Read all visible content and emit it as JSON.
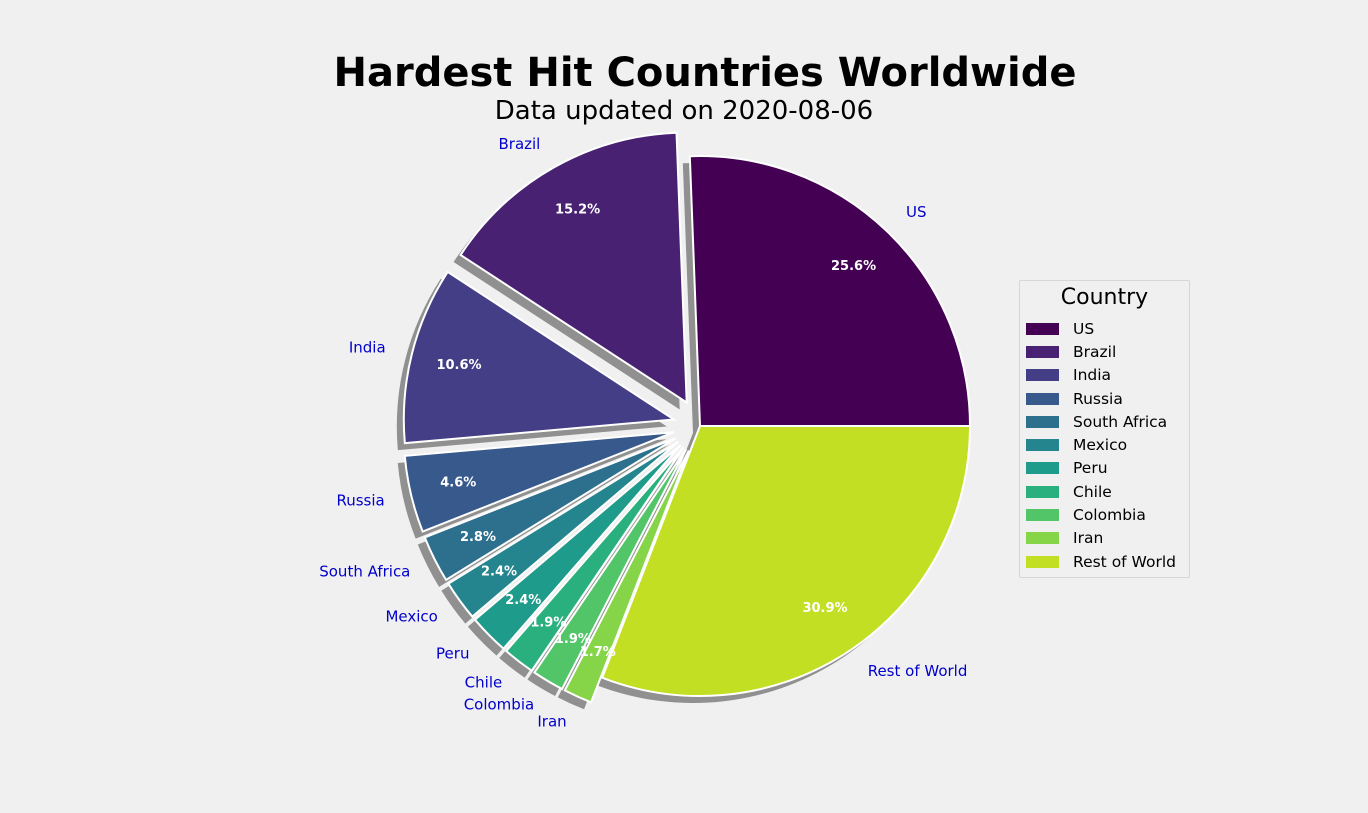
{
  "colors": {
    "background": "#f0f0f0",
    "label_color": "#0000cc",
    "pct_color": "#ffffff",
    "shadow": "#7f7f7f"
  },
  "chart_data": {
    "type": "pie",
    "title": "Hardest Hit Countries Worldwide",
    "subtitle": "Data updated on 2020-08-06",
    "legend": {
      "title": "Country",
      "placement": "right"
    },
    "slices": [
      {
        "label": "US",
        "value": 25.6,
        "pct": "25.6%",
        "color": "#440154",
        "exploded": false
      },
      {
        "label": "Brazil",
        "value": 15.2,
        "pct": "15.2%",
        "color": "#482173",
        "exploded": true
      },
      {
        "label": "India",
        "value": 10.6,
        "pct": "10.6%",
        "color": "#433e85",
        "exploded": true
      },
      {
        "label": "Russia",
        "value": 4.6,
        "pct": "4.6%",
        "color": "#38598c",
        "exploded": true
      },
      {
        "label": "South Africa",
        "value": 2.8,
        "pct": "2.8%",
        "color": "#2d708e",
        "exploded": true
      },
      {
        "label": "Mexico",
        "value": 2.4,
        "pct": "2.4%",
        "color": "#25858e",
        "exploded": true
      },
      {
        "label": "Peru",
        "value": 2.4,
        "pct": "2.4%",
        "color": "#1e9b8a",
        "exploded": true
      },
      {
        "label": "Chile",
        "value": 1.9,
        "pct": "1.9%",
        "color": "#2ab07f",
        "exploded": true
      },
      {
        "label": "Colombia",
        "value": 1.9,
        "pct": "1.9%",
        "color": "#52c569",
        "exploded": true
      },
      {
        "label": "Iran",
        "value": 1.7,
        "pct": "1.7%",
        "color": "#86d549",
        "exploded": true
      },
      {
        "label": "Rest of World",
        "value": 30.9,
        "pct": "30.9%",
        "color": "#c2df23",
        "exploded": false
      }
    ]
  }
}
